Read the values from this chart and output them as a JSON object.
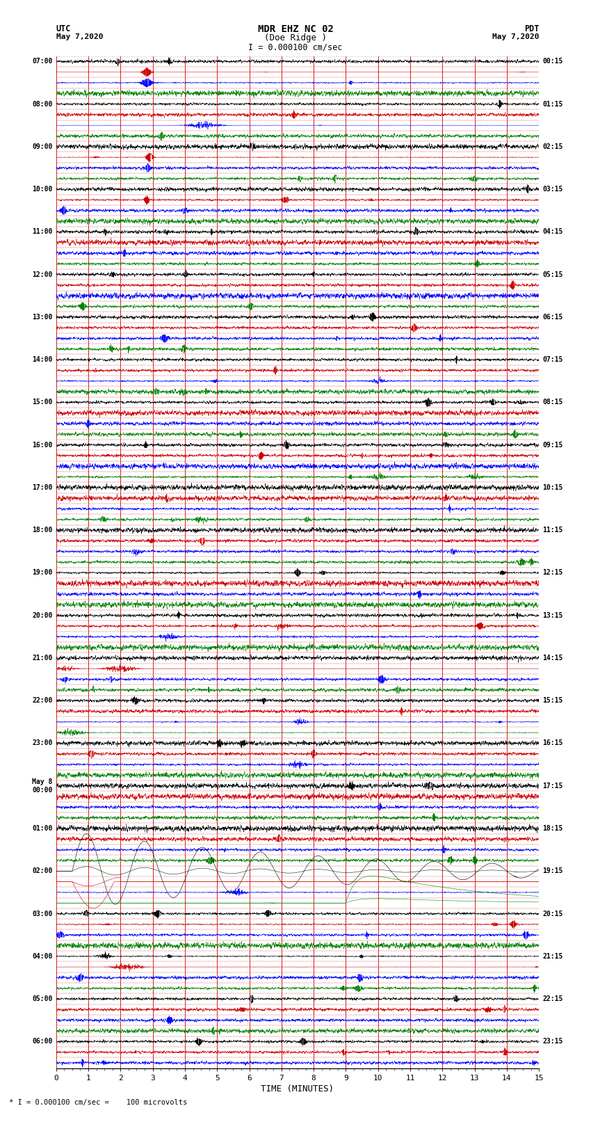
{
  "title_line1": "MDR EHZ NC 02",
  "title_line2": "(Doe Ridge )",
  "scale_label": "I = 0.000100 cm/sec",
  "footer_label": "* I = 0.000100 cm/sec =    100 microvolts",
  "xlabel": "TIME (MINUTES)",
  "xlim": [
    0,
    15
  ],
  "xticks": [
    0,
    1,
    2,
    3,
    4,
    5,
    6,
    7,
    8,
    9,
    10,
    11,
    12,
    13,
    14,
    15
  ],
  "figsize": [
    8.5,
    16.13
  ],
  "dpi": 100,
  "bg_color": "#ffffff",
  "grid_color": "#cc0000",
  "trace_colors": [
    "black",
    "#cc0000",
    "blue",
    "green"
  ],
  "utc_times_left": [
    "07:00",
    "",
    "",
    "",
    "08:00",
    "",
    "",
    "",
    "09:00",
    "",
    "",
    "",
    "10:00",
    "",
    "",
    "",
    "11:00",
    "",
    "",
    "",
    "12:00",
    "",
    "",
    "",
    "13:00",
    "",
    "",
    "",
    "14:00",
    "",
    "",
    "",
    "15:00",
    "",
    "",
    "",
    "16:00",
    "",
    "",
    "",
    "17:00",
    "",
    "",
    "",
    "18:00",
    "",
    "",
    "",
    "19:00",
    "",
    "",
    "",
    "20:00",
    "",
    "",
    "",
    "21:00",
    "",
    "",
    "",
    "22:00",
    "",
    "",
    "",
    "23:00",
    "",
    "",
    "",
    "May 8\n00:00",
    "",
    "",
    "",
    "01:00",
    "",
    "",
    "",
    "02:00",
    "",
    "",
    "",
    "03:00",
    "",
    "",
    "",
    "04:00",
    "",
    "",
    "",
    "05:00",
    "",
    "",
    "",
    "06:00",
    "",
    ""
  ],
  "pdt_times_right": [
    "00:15",
    "",
    "",
    "",
    "01:15",
    "",
    "",
    "",
    "02:15",
    "",
    "",
    "",
    "03:15",
    "",
    "",
    "",
    "04:15",
    "",
    "",
    "",
    "05:15",
    "",
    "",
    "",
    "06:15",
    "",
    "",
    "",
    "07:15",
    "",
    "",
    "",
    "08:15",
    "",
    "",
    "",
    "09:15",
    "",
    "",
    "",
    "10:15",
    "",
    "",
    "",
    "11:15",
    "",
    "",
    "",
    "12:15",
    "",
    "",
    "",
    "13:15",
    "",
    "",
    "",
    "14:15",
    "",
    "",
    "",
    "15:15",
    "",
    "",
    "",
    "16:15",
    "",
    "",
    "",
    "17:15",
    "",
    "",
    "",
    "18:15",
    "",
    "",
    "",
    "19:15",
    "",
    "",
    "",
    "20:15",
    "",
    "",
    "",
    "21:15",
    "",
    "",
    "",
    "22:15",
    "",
    "",
    "",
    "23:15",
    "",
    ""
  ],
  "n_rows": 95,
  "trace_amplitude": 0.42,
  "noise_scale": 0.055
}
